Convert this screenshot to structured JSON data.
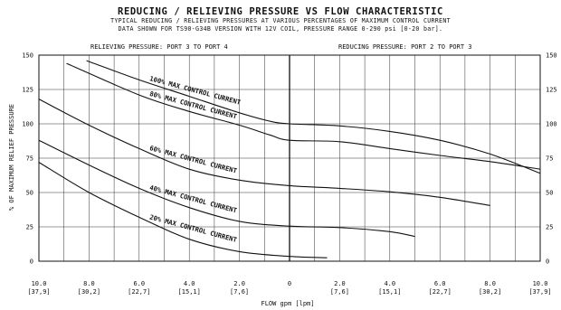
{
  "title": "REDUCING / RELIEVING PRESSURE VS FLOW CHARACTERISTIC",
  "subtitle_1": "TYPICAL REDUCING / RELIEVING PRESSURES AT VARIOUS PERCENTAGES OF MAXIMUM CONTROL CURRENT",
  "subtitle_2": "DATA SHOWN FOR TS90-G34B VERSION WITH 12V COIL, PRESSURE RANGE 0-290 psi [0-20 bar].",
  "chart_data": {
    "type": "line",
    "xlabel": "FLOW gpm [lpm]",
    "ylabel": "% OF MAXIMUM RELIEF PRESSURE",
    "xlim": [
      -10,
      10
    ],
    "ylim": [
      0,
      150
    ],
    "grid": true,
    "left_region_label": "RELIEVING PRESSURE: PORT 3 TO PORT 4",
    "right_region_label": "REDUCING PRESSURE: PORT 2 TO PORT 3",
    "x_ticks": [
      {
        "value": -10,
        "gpm": "10.0",
        "lpm": "[37,9]"
      },
      {
        "value": -8,
        "gpm": "8.0",
        "lpm": "[30,2]"
      },
      {
        "value": -6,
        "gpm": "6.0",
        "lpm": "[22,7]"
      },
      {
        "value": -4,
        "gpm": "4.0",
        "lpm": "[15,1]"
      },
      {
        "value": -2,
        "gpm": "2.0",
        "lpm": "[7,6]"
      },
      {
        "value": 0,
        "gpm": "0",
        "lpm": ""
      },
      {
        "value": 2,
        "gpm": "2.0",
        "lpm": "[7,6]"
      },
      {
        "value": 4,
        "gpm": "4.0",
        "lpm": "[15,1]"
      },
      {
        "value": 6,
        "gpm": "6.0",
        "lpm": "[22,7]"
      },
      {
        "value": 8,
        "gpm": "8.0",
        "lpm": "[30,2]"
      },
      {
        "value": 10,
        "gpm": "10.0",
        "lpm": "[37,9]"
      }
    ],
    "y_ticks": [
      "0",
      "25",
      "50",
      "75",
      "100",
      "125",
      "150"
    ],
    "series": [
      {
        "name": "100% MAX CONTROL CURRENT",
        "x": [
          -8.1,
          -6,
          -4,
          -2,
          -0.8,
          0,
          2,
          4,
          6,
          8,
          10
        ],
        "y": [
          146,
          132,
          120,
          108,
          102,
          100,
          98.5,
          94.5,
          88,
          78,
          64
        ],
        "label_x": -5.5,
        "label_y": 120,
        "label_angle": 14
      },
      {
        "name": "80% MAX CONTROL CURRENT",
        "x": [
          -8.9,
          -6,
          -4,
          -2,
          -0.8,
          0,
          2,
          4,
          6,
          8,
          10
        ],
        "y": [
          144,
          121,
          109,
          99,
          92,
          88,
          87,
          82,
          77,
          72.5,
          67
        ]
      },
      {
        "name": "60% MAX CONTROL CURRENT",
        "x": [
          -10,
          -8,
          -6,
          -4,
          -2,
          0,
          2,
          4,
          6,
          8
        ],
        "y": [
          118,
          99,
          82,
          67,
          59,
          55,
          53,
          50.5,
          46.5,
          40.5
        ]
      },
      {
        "name": "40% MAX CONTROL CURRENT",
        "x": [
          -10,
          -8,
          -6,
          -4,
          -2,
          0,
          2,
          4,
          5
        ],
        "y": [
          88,
          70,
          53,
          39,
          29,
          25.5,
          24.5,
          21.5,
          18
        ]
      },
      {
        "name": "20% MAX CONTROL CURRENT",
        "x": [
          -10,
          -8,
          -6,
          -4,
          -2,
          0,
          1.5
        ],
        "y": [
          72,
          50,
          32,
          16,
          7,
          3.5,
          2.5
        ]
      }
    ]
  }
}
